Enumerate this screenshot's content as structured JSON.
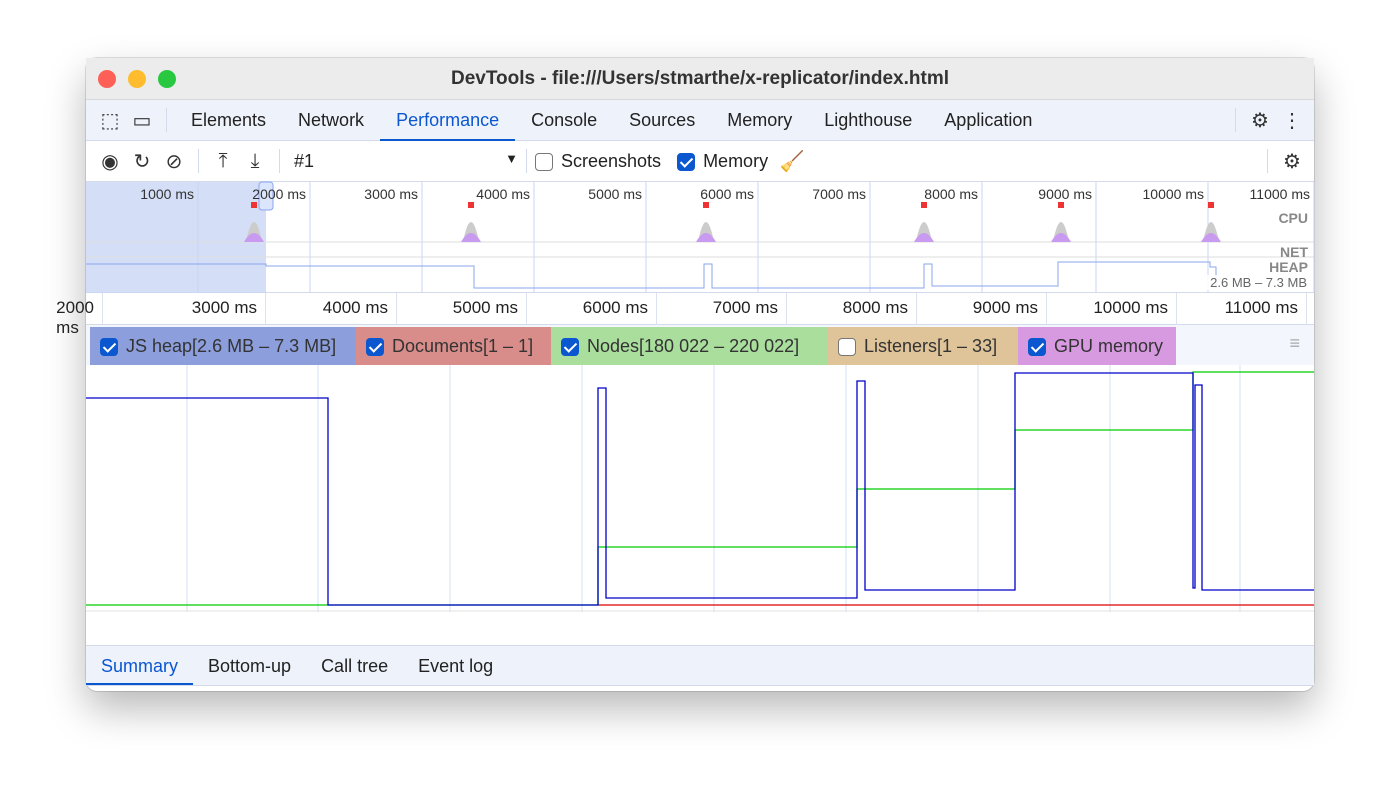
{
  "window": {
    "title": "DevTools - file:///Users/stmarthe/x-replicator/index.html"
  },
  "tabs": [
    {
      "label": "Elements"
    },
    {
      "label": "Network"
    },
    {
      "label": "Performance",
      "active": true
    },
    {
      "label": "Console"
    },
    {
      "label": "Sources"
    },
    {
      "label": "Memory"
    },
    {
      "label": "Lighthouse"
    },
    {
      "label": "Application"
    }
  ],
  "toolbar": {
    "recording": "#1",
    "screenshots_label": "Screenshots",
    "screenshots_checked": false,
    "memory_label": "Memory",
    "memory_checked": true
  },
  "overview": {
    "ticks": [
      "1000 ms",
      "2000 ms",
      "3000 ms",
      "4000 ms",
      "5000 ms",
      "6000 ms",
      "7000 ms",
      "8000 ms",
      "9000 ms",
      "10000 ms",
      "11000 ms"
    ],
    "cpu_label": "CPU",
    "net_label": "NET",
    "heap_label": "HEAP",
    "heap_range": "2.6 MB – 7.3 MB"
  },
  "ruler": {
    "ticks": [
      "2000 ms",
      "3000 ms",
      "4000 ms",
      "5000 ms",
      "6000 ms",
      "7000 ms",
      "8000 ms",
      "9000 ms",
      "10000 ms",
      "11000 ms"
    ]
  },
  "counters": [
    {
      "label": "JS heap[2.6 MB – 7.3 MB]",
      "checked": true,
      "color": "#8c9fdc"
    },
    {
      "label": "Documents[1 – 1]",
      "checked": true,
      "color": "#d88d8a"
    },
    {
      "label": "Nodes[180 022 – 220 022]",
      "checked": true,
      "color": "#a9de9d"
    },
    {
      "label": "Listeners[1 – 33]",
      "checked": false,
      "color": "#e0c499"
    },
    {
      "label": "GPU memory",
      "checked": true,
      "color": "#d79ae0"
    }
  ],
  "series_colors": {
    "js_heap": "#0000cc",
    "documents": "#dd0000",
    "nodes": "#00cc00"
  },
  "bottom_tabs": [
    {
      "label": "Summary",
      "active": true
    },
    {
      "label": "Bottom-up"
    },
    {
      "label": "Call tree"
    },
    {
      "label": "Event log"
    }
  ]
}
